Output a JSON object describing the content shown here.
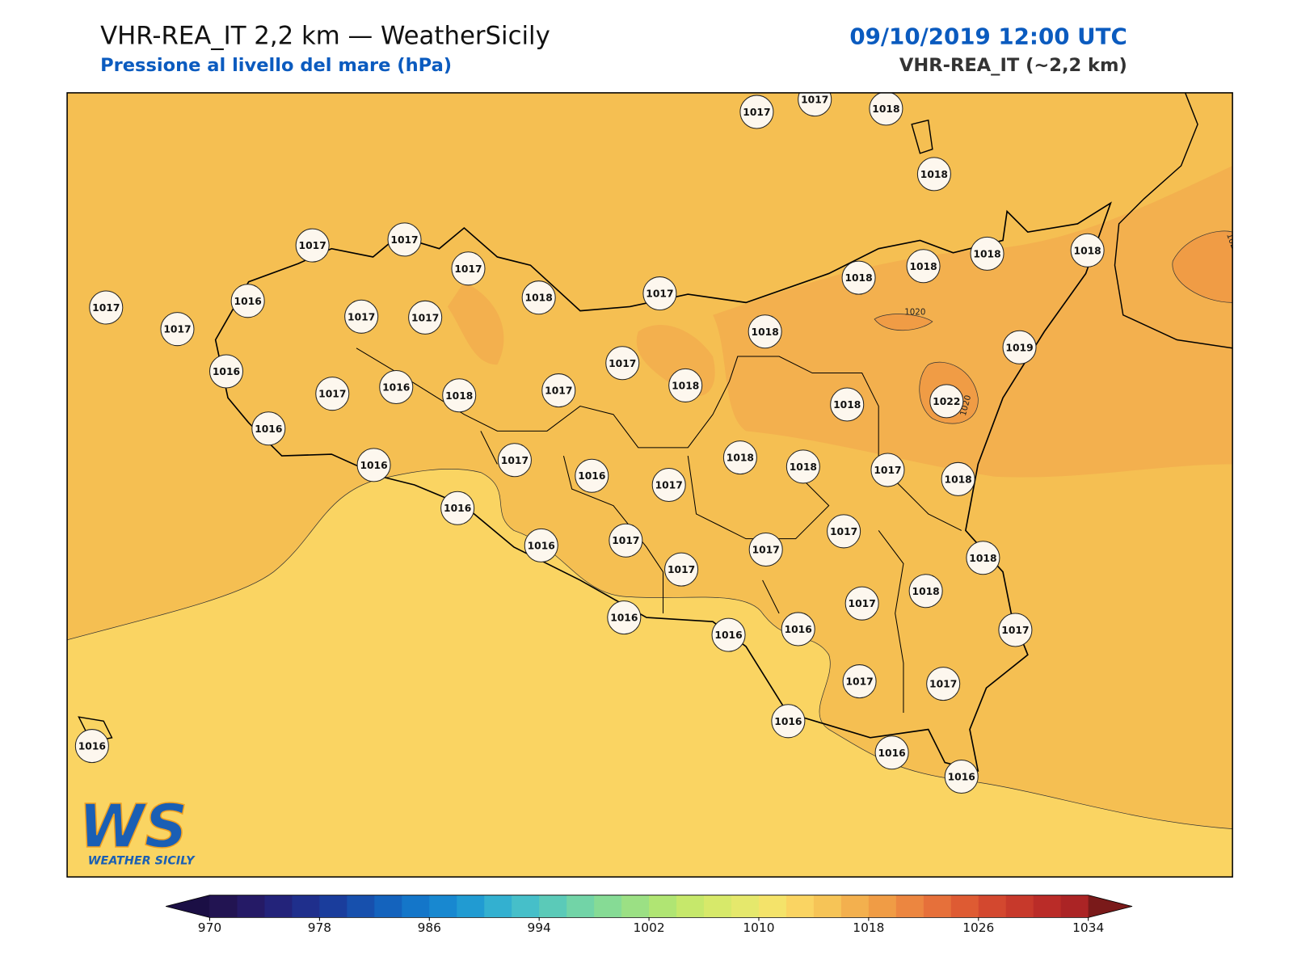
{
  "header": {
    "title": "VHR-REA_IT 2,2 km — WeatherSicily",
    "subtitle": "Pressione al livello del mare (hPa)",
    "datetime": "09/10/2019 12:00 UTC",
    "model": "VHR-REA_IT (~2,2 km)"
  },
  "stations": [
    1017,
    1017,
    1018,
    1018,
    1017,
    1017,
    1017,
    1018,
    1017,
    1018,
    1018,
    1018,
    1018,
    1017,
    1017,
    1016,
    1017,
    1017,
    1018,
    1019,
    1016,
    1017,
    1016,
    1018,
    1017,
    1017,
    1018,
    1018,
    1022,
    1016,
    1016,
    1017,
    1016,
    1017,
    1018,
    1018,
    1017,
    1018,
    1016,
    1016,
    1017,
    1017,
    1017,
    1017,
    1018,
    1017,
    1018,
    1016,
    1016,
    1016,
    1017,
    1017,
    1017,
    1016,
    1016,
    1016,
    1016
  ],
  "contour_labels": [
    "1020",
    "1020",
    "102"
  ],
  "logo": {
    "mark": "WS",
    "name": "WEATHER SICILY"
  },
  "colorbar": {
    "range": [
      970,
      1034
    ],
    "ticks": [
      970,
      978,
      986,
      994,
      1002,
      1010,
      1018,
      1026,
      1034
    ],
    "colors": [
      "#221452",
      "#251a66",
      "#23237a",
      "#1f2f8c",
      "#1a3d9c",
      "#1750ad",
      "#1463bd",
      "#1476c9",
      "#1888d0",
      "#219bd2",
      "#33b0d0",
      "#46bfc9",
      "#5bcab8",
      "#72d4a7",
      "#86db95",
      "#9be084",
      "#b0e573",
      "#c6e86b",
      "#d7e96a",
      "#e5e86c",
      "#f4e36a",
      "#fad462",
      "#f6c457",
      "#f3b04e",
      "#f09c45",
      "#ec8640",
      "#e6703a",
      "#de5b33",
      "#d3482f",
      "#c7392b",
      "#ba2c28",
      "#ab2425"
    ],
    "under": "#1b0f45",
    "over": "#7a1a1a"
  }
}
